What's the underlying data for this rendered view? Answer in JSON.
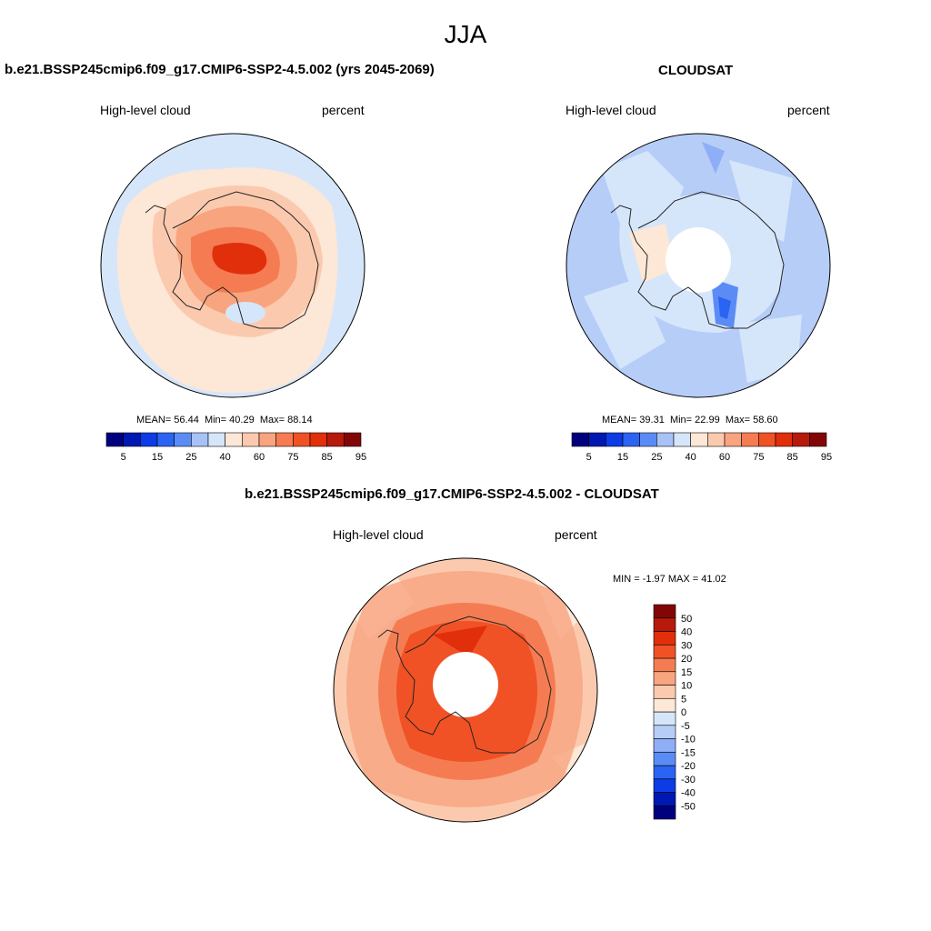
{
  "season": "JJA",
  "panels": [
    {
      "title": "b.e21.BSSP245cmip6.f09_g17.CMIP6-SSP2-4.5.002 (yrs 2045-2069)",
      "left_label": "High-level cloud",
      "right_label": "percent",
      "stats": {
        "mean": "56.44",
        "min": "40.29",
        "max": "88.14"
      }
    },
    {
      "title": "CLOUDSAT",
      "left_label": "High-level cloud",
      "right_label": "percent",
      "stats": {
        "mean": "39.31",
        "min": "22.99",
        "max": "58.60"
      }
    },
    {
      "title": "b.e21.BSSP245cmip6.f09_g17.CMIP6-SSP2-4.5.002 - CLOUDSAT",
      "left_label": "High-level cloud",
      "right_label": "percent",
      "stats": {
        "min": "-1.97",
        "max": "41.02"
      }
    }
  ],
  "stat_labels": {
    "mean": "MEAN=",
    "min": "Min=",
    "max": "Max=",
    "diff_min": "MIN =",
    "diff_max": "MAX ="
  },
  "colorbar_abs": {
    "colors": [
      "#00007f",
      "#0018b2",
      "#0d3ce6",
      "#2b63f2",
      "#5b8cf6",
      "#a8c2f7",
      "#d6e6fa",
      "#fde7d6",
      "#fbcaae",
      "#f8a47f",
      "#f57c52",
      "#f05225",
      "#e02f0a",
      "#b7190b",
      "#820606"
    ],
    "tick_labels": [
      "5",
      "15",
      "25",
      "40",
      "60",
      "75",
      "85",
      "95"
    ]
  },
  "colorbar_diff": {
    "colors": [
      "#00007f",
      "#0018b2",
      "#0d3ce6",
      "#2b63f2",
      "#5b8cf6",
      "#8eaef7",
      "#b6cdf8",
      "#d6e6fa",
      "#fde7d6",
      "#fbcaae",
      "#f8a47f",
      "#f57c52",
      "#f05225",
      "#e02f0a",
      "#b7190b",
      "#820606"
    ],
    "tick_labels": [
      "-50",
      "-40",
      "-30",
      "-20",
      "-15",
      "-10",
      "-5",
      "0",
      "5",
      "10",
      "15",
      "20",
      "30",
      "40",
      "50"
    ]
  }
}
